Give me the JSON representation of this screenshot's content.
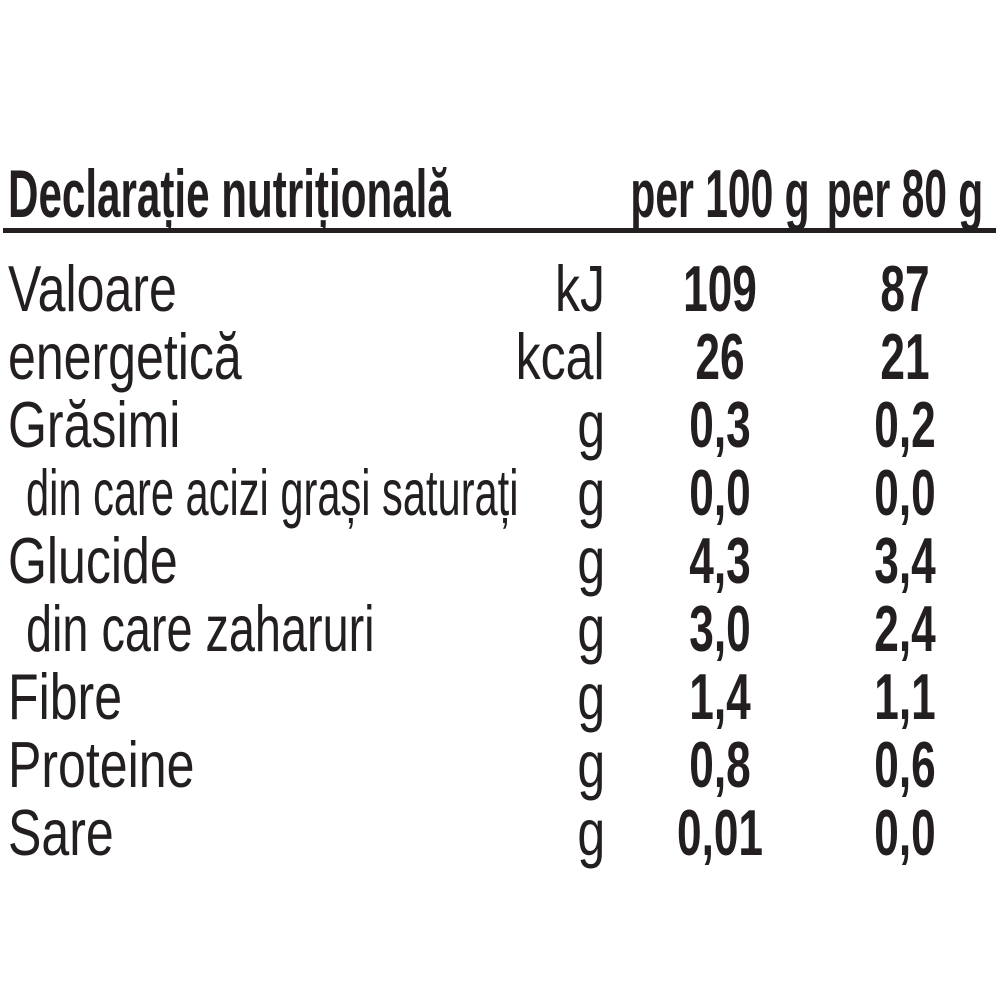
{
  "header": {
    "title": "Declarație nutrițională",
    "col1": "per 100 g",
    "col2": "per 80 g"
  },
  "rows": [
    {
      "label": "Valoare",
      "unit": "kJ",
      "per100": "109",
      "per80": "87"
    },
    {
      "label": "energetică",
      "unit": "kcal",
      "per100": "26",
      "per80": "21"
    },
    {
      "label": "Grăsimi",
      "unit": "g",
      "per100": "0,3",
      "per80": "0,2"
    },
    {
      "label": "din care acizi grași saturați",
      "unit": "g",
      "per100": "0,0",
      "per80": "0,0"
    },
    {
      "label": "Glucide",
      "unit": "g",
      "per100": "4,3",
      "per80": "3,4"
    },
    {
      "label": "din care zaharuri",
      "unit": "g",
      "per100": "3,0",
      "per80": "2,4"
    },
    {
      "label": "Fibre",
      "unit": "g",
      "per100": "1,4",
      "per80": "1,1"
    },
    {
      "label": "Proteine",
      "unit": "g",
      "per100": "0,8",
      "per80": "0,6"
    },
    {
      "label": "Sare",
      "unit": "g",
      "per100": "0,01",
      "per80": "0,0"
    }
  ]
}
